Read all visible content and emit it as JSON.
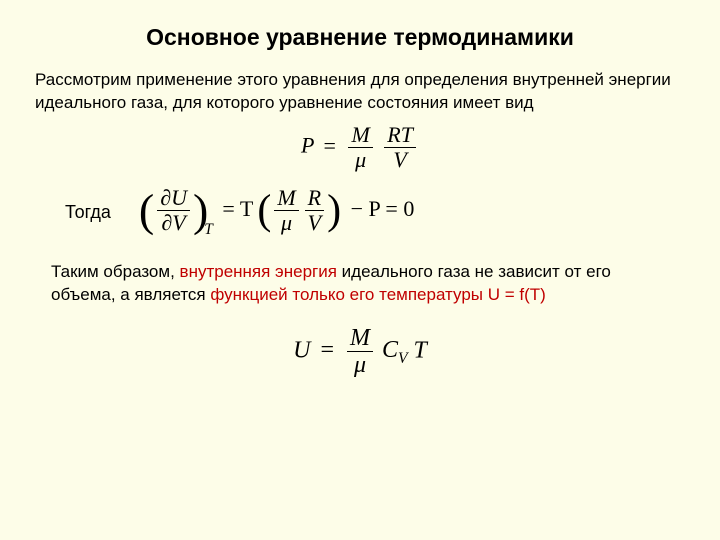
{
  "title": "Основное уравнение термодинамики",
  "intro": "Рассмотрим применение этого уравнения для определения внутренней энергии идеального газа, для которого уравнение состояния имеет вид",
  "formula1": {
    "lhs": "P",
    "eq": "=",
    "frac1_num": "M",
    "frac1_den": "μ",
    "frac2_num": "RT",
    "frac2_den": "V"
  },
  "then_label": "Тогда",
  "formula2": {
    "dU": "∂U",
    "dV": "∂V",
    "subT": "T",
    "eqT": "= T",
    "M": "M",
    "mu": "μ",
    "R": "R",
    "V": "V",
    "tail": "− P = 0",
    "minus": "−",
    "P": "P",
    "zero": "= 0"
  },
  "conclusion_prefix": "Таким образом, ",
  "conclusion_red1": "внутренняя энергия",
  "conclusion_mid": " идеального газа не зависит от его объема, а является ",
  "conclusion_red2": "функцией только его температуры U = f(T)",
  "formula3": {
    "U": "U",
    "eq": "=",
    "M": "M",
    "mu": "μ",
    "Cv": "C",
    "vsub": "V",
    "T": "T"
  },
  "colors": {
    "background": "#fdfde8",
    "text": "#000000",
    "highlight": "#c00000"
  }
}
